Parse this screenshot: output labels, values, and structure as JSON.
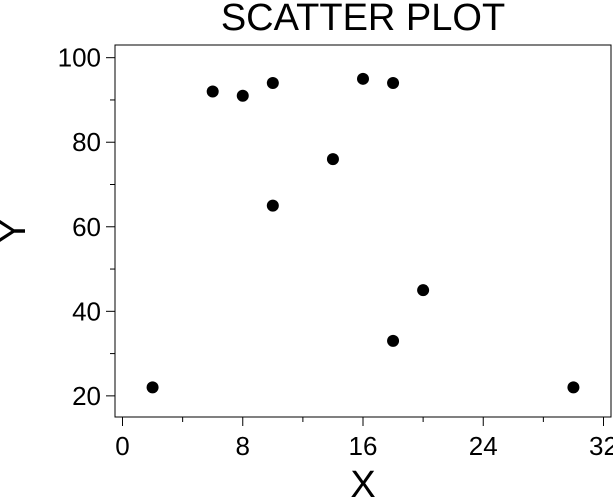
{
  "chart_data": {
    "type": "scatter",
    "title": "SCATTER PLOT",
    "xlabel": "X",
    "ylabel": "Y",
    "xlim": [
      -0.5,
      32.5
    ],
    "ylim": [
      15,
      103
    ],
    "x_ticks": [
      0,
      8,
      16,
      24,
      32
    ],
    "x_minor_ticks": [
      4,
      12,
      20,
      28
    ],
    "y_ticks": [
      20,
      40,
      60,
      80,
      100
    ],
    "y_minor_ticks": [
      30,
      50,
      70,
      90
    ],
    "grid": false,
    "marker_color": "#000000",
    "series": [
      {
        "x": [
          2,
          6,
          8,
          10,
          10,
          14,
          16,
          18,
          18,
          20,
          30
        ],
        "y": [
          22,
          92,
          91,
          94,
          65,
          76,
          95,
          94,
          33,
          45,
          22
        ]
      }
    ]
  }
}
